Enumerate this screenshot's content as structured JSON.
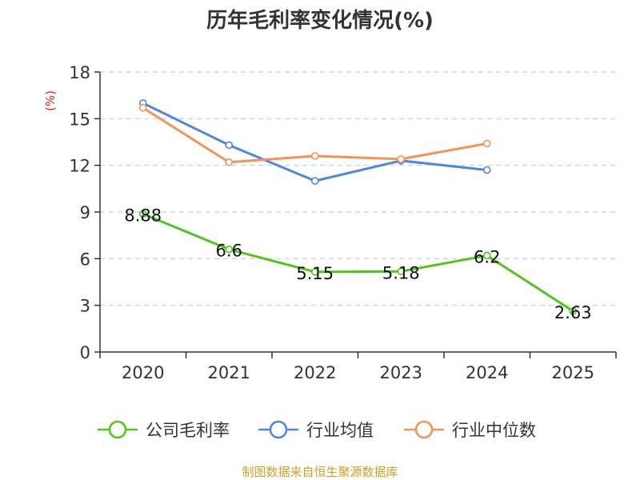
{
  "chart_data": {
    "type": "line",
    "title": "历年毛利率变化情况(%)",
    "ylabel": "(%)",
    "xlabel": "",
    "categories": [
      "2020",
      "2021",
      "2022",
      "2023",
      "2024",
      "2025"
    ],
    "ylim": [
      0,
      18
    ],
    "yticks": [
      0,
      3,
      6,
      9,
      12,
      15,
      18
    ],
    "grid": true,
    "legend_position": "bottom",
    "series": [
      {
        "name": "公司毛利率",
        "color": "#52c41a",
        "values": [
          8.88,
          6.6,
          5.15,
          5.18,
          6.2,
          2.63
        ],
        "labels": [
          "8.88",
          "6.6",
          "5.15",
          "5.18",
          "6.2",
          "2.63"
        ]
      },
      {
        "name": "行业均值",
        "color": "#4f86e0",
        "values": [
          16.0,
          13.3,
          11.0,
          12.3,
          11.7,
          null
        ]
      },
      {
        "name": "行业中位数",
        "color": "#f59356",
        "values": [
          15.7,
          12.2,
          12.6,
          12.4,
          13.4,
          null
        ]
      }
    ]
  },
  "footer": "制图数据来自恒生聚源数据库"
}
